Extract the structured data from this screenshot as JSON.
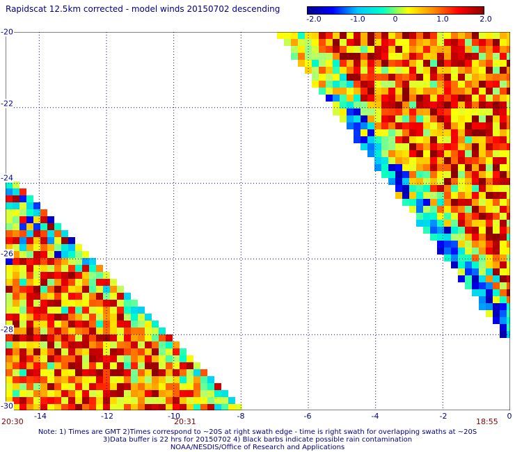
{
  "title": "Rapidscat 12.5km corrected - model winds 20150702 descending",
  "colorbar": {
    "min": -2.0,
    "max": 2.0,
    "ticks": [
      "-2.0",
      "-1.0",
      "0",
      "1.0",
      "2.0"
    ],
    "colors": [
      "#00008b",
      "#0000ff",
      "#00c8ff",
      "#00ffc8",
      "#ffff00",
      "#ff8c00",
      "#ff0000",
      "#8b0000"
    ]
  },
  "y_axis": {
    "ticks": [
      "-20",
      "-22",
      "-24",
      "-26",
      "-28",
      "-30"
    ]
  },
  "x_axis": {
    "ticks": [
      "-14",
      "-12",
      "-10",
      "-8",
      "-6",
      "-4",
      "-2",
      "0"
    ]
  },
  "times": {
    "left": "20:30",
    "middle": "20:31",
    "right": "18:55"
  },
  "notes": {
    "line1": "Note: 1) Times are GMT 2)Times correspond to ~20S at right swath edge - time is right swath for overlapping swaths at ~20S",
    "line2": "3)Data buffer is 22 hrs for 20150702 4) Black barbs indicate possible rain contamination",
    "line3": "NOAA/NESDIS/Office of Research and Applications"
  },
  "chart_data": {
    "type": "heatmap",
    "title": "Rapidscat 12.5km corrected - model winds 20150702 descending",
    "xlim": [
      -15,
      0
    ],
    "ylim": [
      -30,
      -20
    ],
    "value_range": [
      -2.0,
      2.0
    ],
    "grid": true,
    "swaths": [
      {
        "name": "right",
        "lon_range": [
          -6.6,
          0
        ],
        "lat_range": [
          -20,
          -28.5
        ]
      },
      {
        "name": "left",
        "lon_range": [
          -15,
          -7.8
        ],
        "lat_range": [
          -24,
          -30
        ]
      }
    ]
  }
}
